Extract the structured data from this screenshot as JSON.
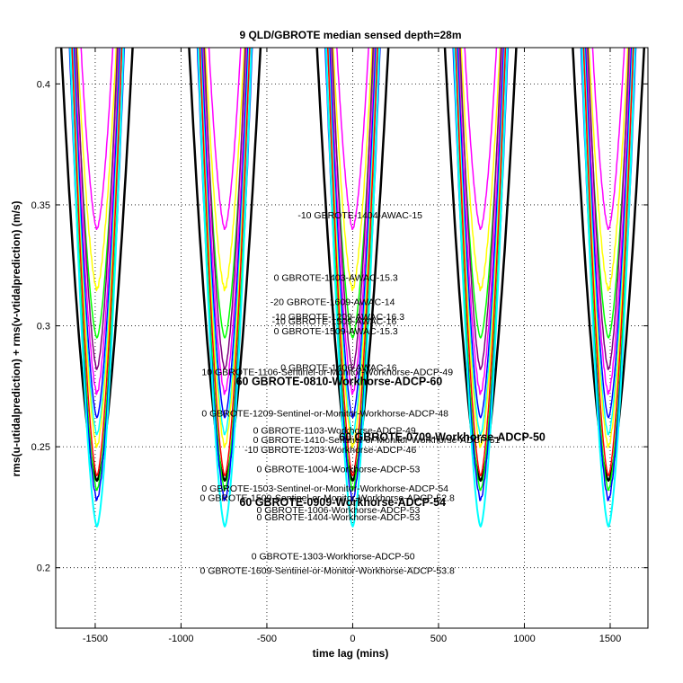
{
  "chart_data": {
    "type": "line",
    "title": "9 QLD/GBROTE median sensed depth=28m",
    "xlabel": "time lag (mins)",
    "ylabel": "rms(u-utidalprediction) + rms(v-vtidalprediction) (m/s)",
    "xlim": [
      -1730,
      1720
    ],
    "ylim": [
      0.175,
      0.415
    ],
    "xticks": [
      -1500,
      -1000,
      -500,
      0,
      500,
      1000,
      1500
    ],
    "xtick_labels": [
      "-1500",
      "-1000",
      "-500",
      "0",
      "500",
      "1000",
      "1500"
    ],
    "yticks": [
      0.2,
      0.25,
      0.3,
      0.35,
      0.4
    ],
    "ytick_labels": [
      "0.2",
      "0.25",
      "0.3",
      "0.35",
      "0.4"
    ],
    "grid": true,
    "legend": "none",
    "dip_centers": [
      -1490,
      -745,
      0,
      745,
      1490
    ],
    "series": [
      {
        "color": "#000000",
        "min_y": 0.236,
        "half_width": 215,
        "width": 2.5
      },
      {
        "color": "#ff00ff",
        "min_y": 0.34,
        "half_width": 100,
        "width": 1.5
      },
      {
        "color": "#ffff00",
        "min_y": 0.315,
        "half_width": 120,
        "width": 1.5
      },
      {
        "color": "#00ff00",
        "min_y": 0.295,
        "half_width": 130,
        "width": 1.5
      },
      {
        "color": "#800080",
        "min_y": 0.282,
        "half_width": 125,
        "width": 1.5
      },
      {
        "color": "#ff00ff",
        "min_y": 0.272,
        "half_width": 135,
        "width": 1.5
      },
      {
        "color": "#0000ff",
        "min_y": 0.262,
        "half_width": 140,
        "width": 1.5
      },
      {
        "color": "#00ffff",
        "min_y": 0.255,
        "half_width": 145,
        "width": 1.5
      },
      {
        "color": "#ffff00",
        "min_y": 0.25,
        "half_width": 150,
        "width": 1.5
      },
      {
        "color": "#ff0000",
        "min_y": 0.238,
        "half_width": 150,
        "width": 1.5
      },
      {
        "color": "#00ff00",
        "min_y": 0.232,
        "half_width": 160,
        "width": 1.5
      },
      {
        "color": "#0000ff",
        "min_y": 0.228,
        "half_width": 165,
        "width": 1.5
      },
      {
        "color": "#00ffff",
        "min_y": 0.217,
        "half_width": 160,
        "width": 2
      }
    ],
    "annotations": [
      {
        "text": "-10 GBROTE-1404-AWAC-15",
        "x": -320,
        "y": 0.3445,
        "bold": false
      },
      {
        "text": "0 GBROTE-1403-AWAC-15.3",
        "x": -460,
        "y": 0.3185,
        "bold": false
      },
      {
        "text": "-20 GBROTE-1609-AWAC-14",
        "x": -480,
        "y": 0.3085,
        "bold": false
      },
      {
        "text": "-10 GBROTE-1209-AWAC-16.3",
        "x": -470,
        "y": 0.3025,
        "bold": false
      },
      {
        "text": "-10 GBROTE-1509-AWAC-16",
        "x": -470,
        "y": 0.3005,
        "bold": false
      },
      {
        "text": "0 GBROTE-1509-AWAC-15.3",
        "x": -460,
        "y": 0.2965,
        "bold": false
      },
      {
        "text": "0 GBROTE-1406-AWAC-16",
        "x": -420,
        "y": 0.2815,
        "bold": false
      },
      {
        "text": "10 GBROTE-1106-Sentinel-or-Monitor-Workhorse-ADCP-49",
        "x": -880,
        "y": 0.2795,
        "bold": false
      },
      {
        "text": "60 GBROTE-0810-Workhorse-ADCP-60",
        "x": -680,
        "y": 0.2755,
        "bold": true
      },
      {
        "text": "0 GBROTE-1209-Sentinel-or-Monitor-Workhorse-ADCP-48",
        "x": -880,
        "y": 0.2625,
        "bold": false
      },
      {
        "text": "0 GBROTE-1103-Workhorse-ADCP-49",
        "x": -580,
        "y": 0.2555,
        "bold": false
      },
      {
        "text": "0 GBROTE-1410-Sentinel-or-Monitor-Workhorse-ADCP-51",
        "x": -580,
        "y": 0.2515,
        "bold": false
      },
      {
        "text": "60 GBROTE-0709-Workhorse-ADCP-50",
        "x": -80,
        "y": 0.2525,
        "bold": true
      },
      {
        "text": "-10 GBROTE-1203-Workhorse-ADCP-46",
        "x": -630,
        "y": 0.2475,
        "bold": false
      },
      {
        "text": "0 GBROTE-1004-Workhorse-ADCP-53",
        "x": -560,
        "y": 0.2395,
        "bold": false
      },
      {
        "text": "0 GBROTE-1503-Sentinel-or-Monitor-Workhorse-ADCP-54",
        "x": -880,
        "y": 0.2315,
        "bold": false
      },
      {
        "text": "0 GBROTE-1509-Sentinel-or-Monitor-Workhorse-ADCP-52.8",
        "x": -890,
        "y": 0.2275,
        "bold": false
      },
      {
        "text": "60 GBROTE-0909-Workhorse-ADCP-54",
        "x": -660,
        "y": 0.2255,
        "bold": true
      },
      {
        "text": "0 GBROTE-1006-Workhorse-ADCP-53",
        "x": -560,
        "y": 0.2225,
        "bold": false
      },
      {
        "text": "0 GBROTE-1404-Workhorse-ADCP-53",
        "x": -560,
        "y": 0.2195,
        "bold": false
      },
      {
        "text": "0 GBROTE-1303-Workhorse-ADCP-50",
        "x": -590,
        "y": 0.2035,
        "bold": false
      },
      {
        "text": "0 GBROTE-1609-Sentinel-or-Monitor-Workhorse-ADCP-53.8",
        "x": -890,
        "y": 0.1975,
        "bold": false
      }
    ]
  }
}
